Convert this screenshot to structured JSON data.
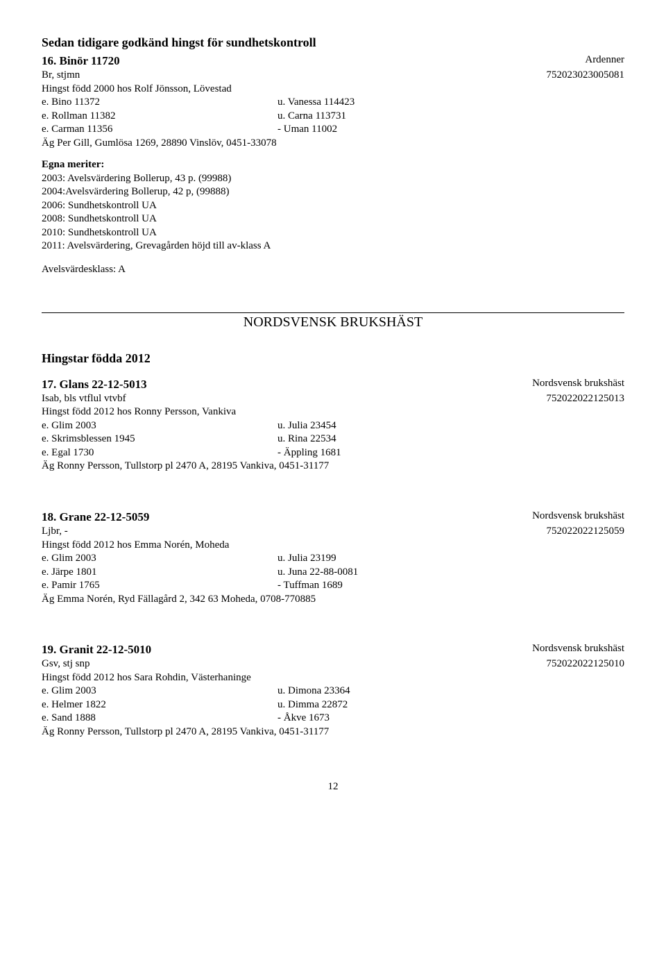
{
  "prev_section_heading": "Sedan tidigare godkänd hingst för sundhetskontroll",
  "entries": [
    {
      "title": "16. Binör 11720",
      "breed": "Ardenner",
      "color_line": "Br, stjmn",
      "reg": "752023023005081",
      "born_line": "Hingst född 2000 hos Rolf Jönsson, Lövestad",
      "pedigree": [
        {
          "c1": "e.   Bino 11372",
          "c2": "u.   Vanessa 114423"
        },
        {
          "c1": "e.   Rollman 11382",
          "c2": "u.   Carna  113731"
        },
        {
          "c1": "e.   Carman 11356",
          "c2": "-    Uman 11002"
        }
      ],
      "owner": "Äg   Per Gill, Gumlösa 1269, 28890 Vinslöv, 0451-33078",
      "merits": {
        "head": "Egna meriter:",
        "lines": [
          "2003: Avelsvärdering Bollerup, 43 p. (99988)",
          "2004:Avelsvärdering Bollerup, 42 p, (99888)",
          "2006: Sundhetskontroll UA",
          "2008: Sundhetskontroll UA",
          "2010: Sundhetskontroll UA",
          "2011: Avelsvärdering, Grevagården höjd till av-klass A"
        ]
      },
      "avels": "Avelsvärdesklass: A"
    },
    {
      "title": "17. Glans 22-12-5013",
      "breed": "Nordsvensk brukshäst",
      "color_line": "Isab, bls vtflul vtvbf",
      "reg": "752022022125013",
      "born_line": "Hingst född 2012 hos Ronny Persson, Vankiva",
      "pedigree": [
        {
          "c1": "e.   Glim 2003",
          "c2": "u.   Julia 23454"
        },
        {
          "c1": "e.   Skrimsblessen 1945",
          "c2": "u.   Rina 22534"
        },
        {
          "c1": "e.   Egal 1730",
          "c2": "-    Äppling 1681"
        }
      ],
      "owner": "Äg   Ronny Persson, Tullstorp pl 2470 A, 28195 Vankiva, 0451-31177"
    },
    {
      "title": "18. Grane 22-12-5059",
      "breed": "Nordsvensk brukshäst",
      "color_line": "Ljbr, -",
      "reg": "752022022125059",
      "born_line": "Hingst född 2012 hos Emma Norén, Moheda",
      "pedigree": [
        {
          "c1": "e.   Glim 2003",
          "c2": "u.   Julia 23199"
        },
        {
          "c1": "e.   Järpe 1801",
          "c2": "u.   Juna 22-88-0081"
        },
        {
          "c1": "e.   Pamir 1765",
          "c2": "-    Tuffman 1689"
        }
      ],
      "owner": "Äg   Emma Norén, Ryd Fällagård 2, 342 63 Moheda, 0708-770885"
    },
    {
      "title": "19. Granit 22-12-5010",
      "breed": "Nordsvensk brukshäst",
      "color_line": "Gsv, stj snp",
      "reg": "752022022125010",
      "born_line": "Hingst född 2012 hos Sara Rohdin, Västerhaninge",
      "pedigree": [
        {
          "c1": "e.   Glim 2003",
          "c2": "u.   Dimona 23364"
        },
        {
          "c1": "e.   Helmer 1822",
          "c2": "u.   Dimma 22872"
        },
        {
          "c1": "e.   Sand 1888",
          "c2": "-    Åkve 1673"
        }
      ],
      "owner": "Äg   Ronny Persson, Tullstorp pl 2470 A, 28195 Vankiva, 0451-31177"
    }
  ],
  "breed_section_name": "NORDSVENSK BRUKSHÄST",
  "hingstar_heading": "Hingstar födda 2012",
  "page_number": "12"
}
